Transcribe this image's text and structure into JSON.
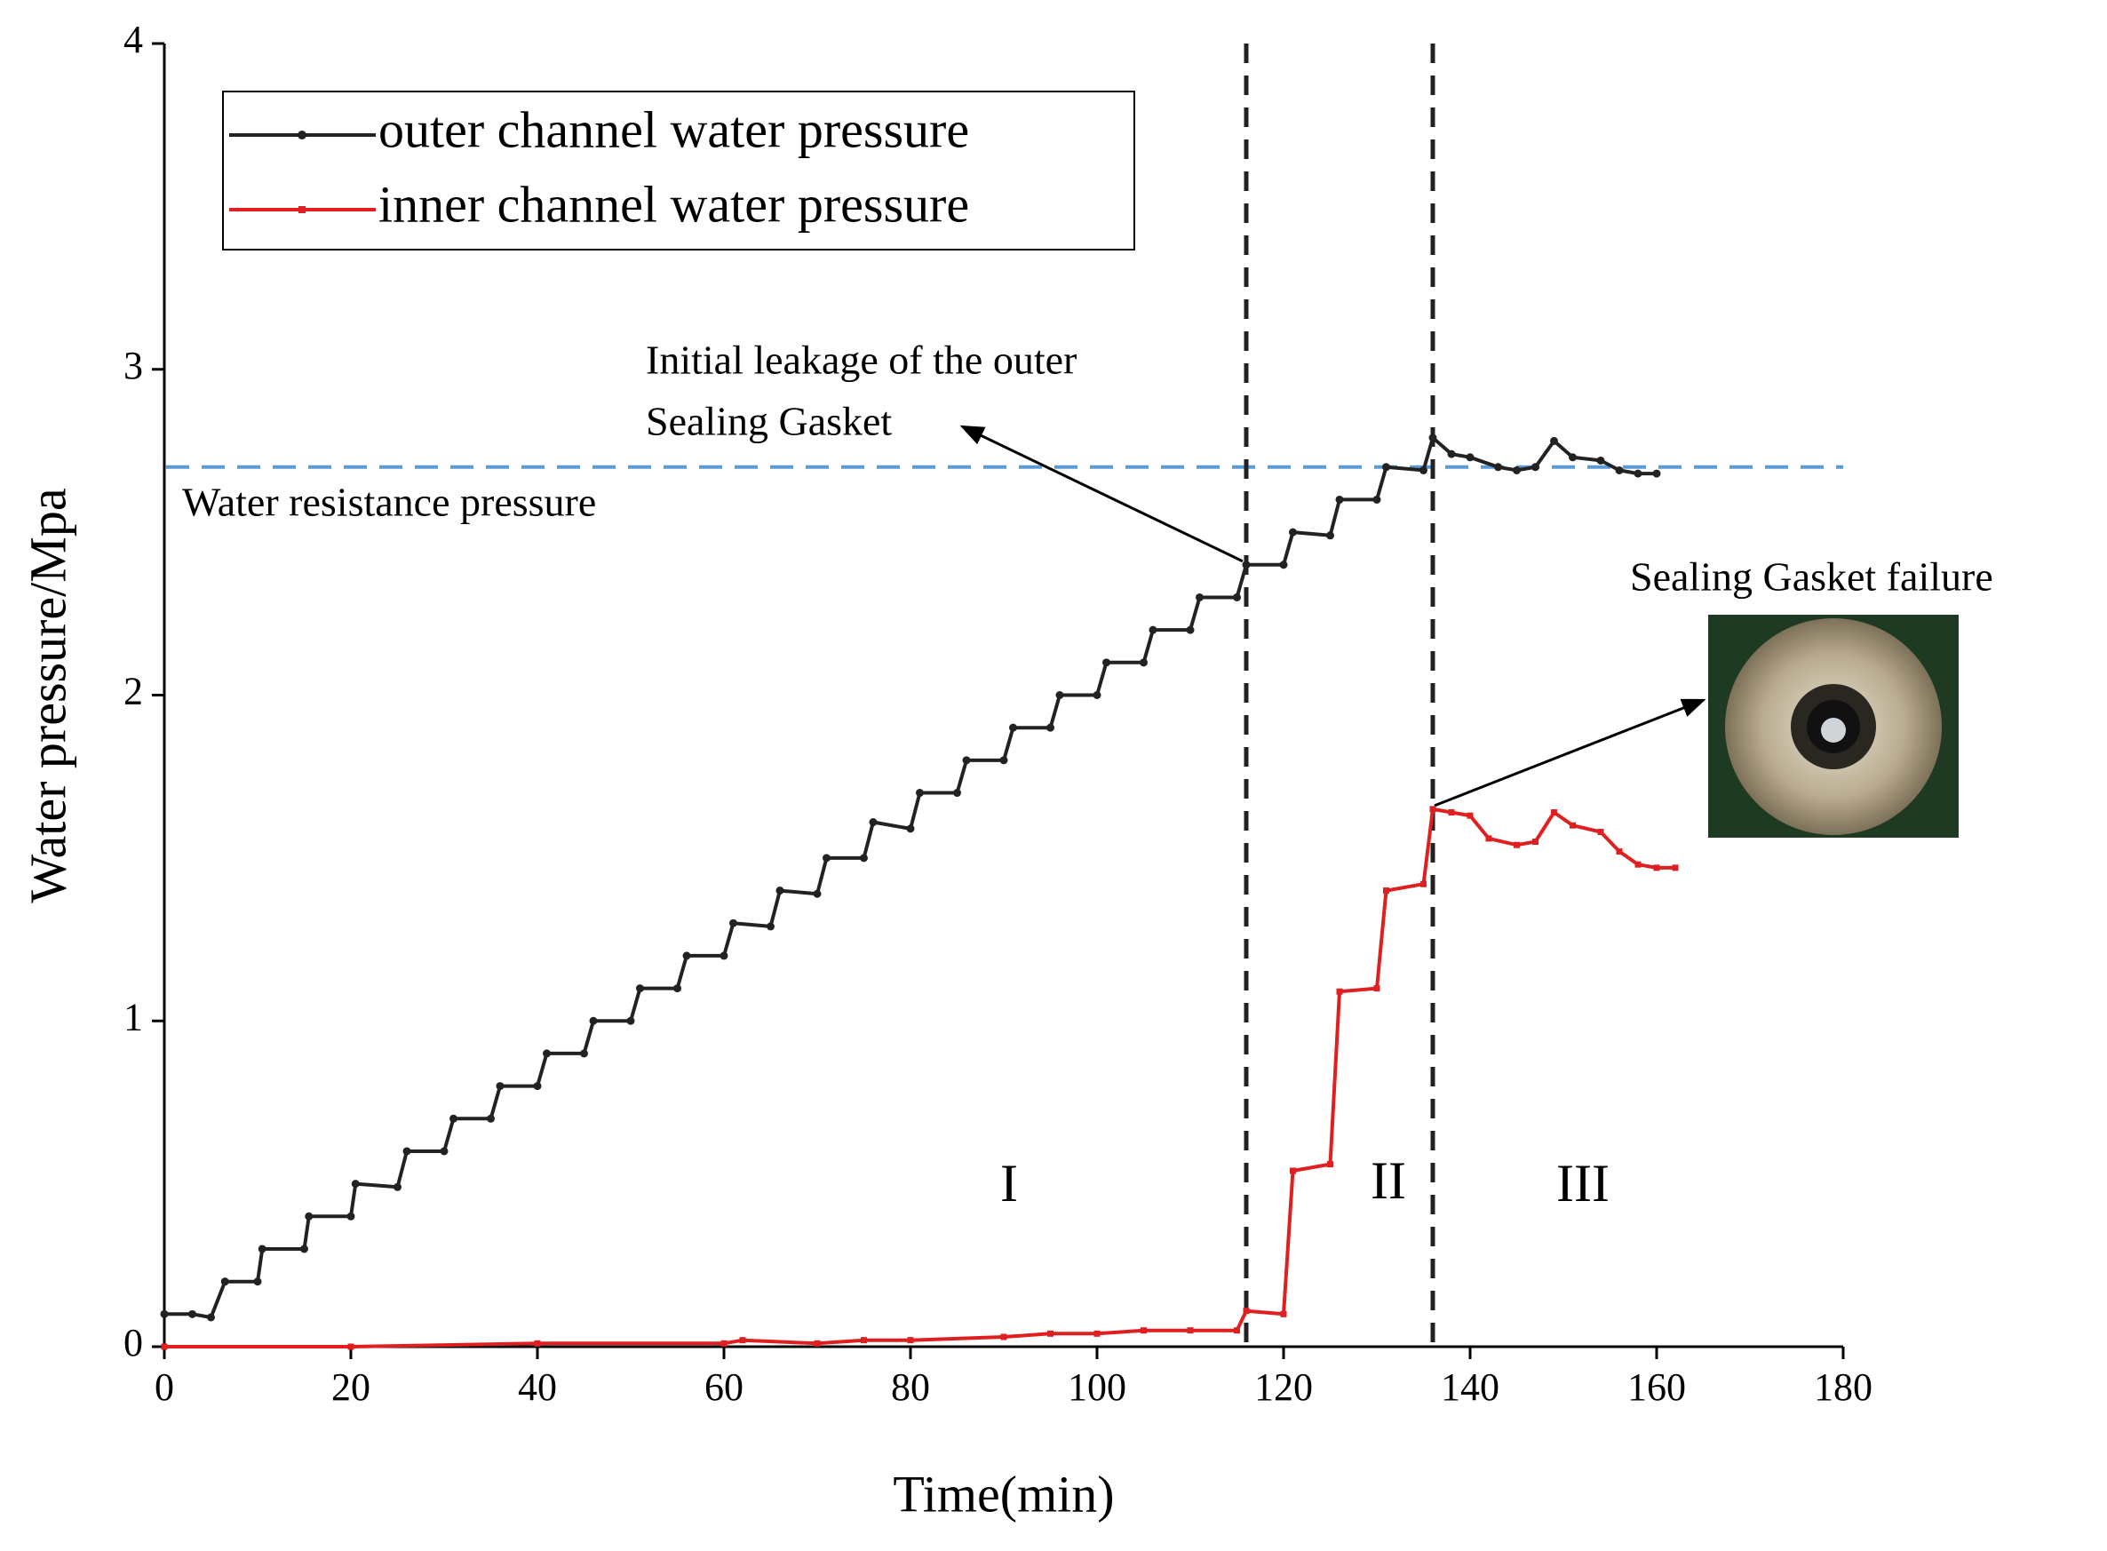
{
  "chart_data": {
    "type": "line",
    "x_label": "Time(min)",
    "y_label": "Water pressure/Mpa",
    "xlim": [
      0,
      180
    ],
    "ylim": [
      0,
      4
    ],
    "xticks": [
      0,
      20,
      40,
      60,
      80,
      100,
      120,
      140,
      160,
      180
    ],
    "yticks": [
      0,
      1,
      2,
      3,
      4
    ],
    "series": [
      {
        "name": "outer channel water pressure",
        "color": "#222222",
        "marker": "circle",
        "x": [
          0,
          3,
          5,
          6.5,
          10,
          10.5,
          15,
          15.5,
          20,
          20.5,
          25,
          26,
          30,
          31,
          35,
          36,
          40,
          41,
          45,
          46,
          50,
          51,
          55,
          56,
          60,
          61,
          65,
          66,
          70,
          71,
          75,
          76,
          80,
          81,
          85,
          86,
          90,
          91,
          95,
          96,
          100,
          101,
          105,
          106,
          110,
          111,
          115,
          116,
          120,
          121,
          125,
          126,
          130,
          131,
          135,
          136,
          138,
          140,
          143,
          145,
          147,
          149,
          151,
          154,
          156,
          158,
          160
        ],
        "values": [
          0.1,
          0.1,
          0.09,
          0.2,
          0.2,
          0.3,
          0.3,
          0.4,
          0.4,
          0.5,
          0.49,
          0.6,
          0.6,
          0.7,
          0.7,
          0.8,
          0.8,
          0.9,
          0.9,
          1.0,
          1.0,
          1.1,
          1.1,
          1.2,
          1.2,
          1.3,
          1.29,
          1.4,
          1.39,
          1.5,
          1.5,
          1.61,
          1.59,
          1.7,
          1.7,
          1.8,
          1.8,
          1.9,
          1.9,
          2.0,
          2.0,
          2.1,
          2.1,
          2.2,
          2.2,
          2.3,
          2.3,
          2.4,
          2.4,
          2.5,
          2.49,
          2.6,
          2.6,
          2.7,
          2.69,
          2.79,
          2.74,
          2.73,
          2.7,
          2.69,
          2.7,
          2.78,
          2.73,
          2.72,
          2.69,
          2.68,
          2.68
        ]
      },
      {
        "name": "inner channel water pressure",
        "color": "#e02020",
        "marker": "square",
        "x": [
          0,
          20,
          40,
          60,
          62,
          70,
          75,
          80,
          90,
          95,
          100,
          105,
          110,
          115,
          116,
          120,
          121,
          125,
          126,
          130,
          131,
          135,
          136,
          138,
          140,
          142,
          145,
          147,
          149,
          151,
          154,
          156,
          158,
          160,
          162
        ],
        "values": [
          0,
          0,
          0.01,
          0.01,
          0.02,
          0.01,
          0.02,
          0.02,
          0.03,
          0.04,
          0.04,
          0.05,
          0.05,
          0.05,
          0.11,
          0.1,
          0.54,
          0.56,
          1.09,
          1.1,
          1.4,
          1.42,
          1.65,
          1.64,
          1.63,
          1.56,
          1.54,
          1.55,
          1.64,
          1.6,
          1.58,
          1.52,
          1.48,
          1.47,
          1.47
        ]
      }
    ],
    "hlines": [
      {
        "value": 2.7,
        "color": "#5b9bd5"
      }
    ],
    "vlines": [
      116,
      136
    ],
    "annotations": [
      "Initial leakage of the outer",
      "Sealing Gasket",
      "Water resistance pressure",
      "Sealing Gasket failure"
    ],
    "region_labels": [
      "I",
      "II",
      "III"
    ],
    "legend": "upper left"
  }
}
